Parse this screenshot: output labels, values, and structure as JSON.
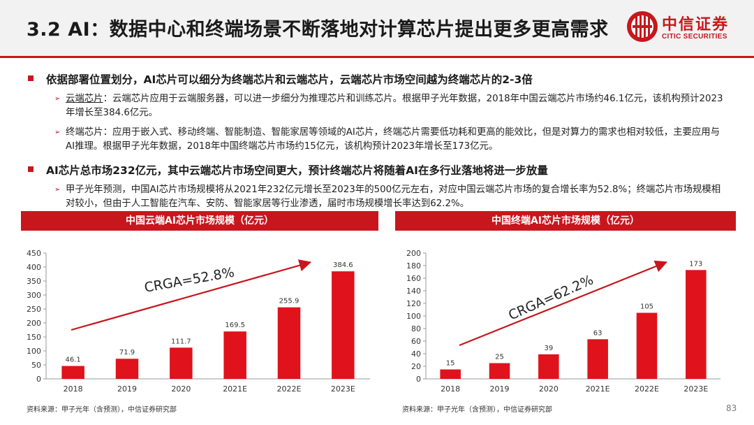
{
  "header": {
    "title": "3.2 AI：数据中心和终端场景不断落地对计算芯片提出更多更高需求",
    "logo_cn": "中信证券",
    "logo_en": "CITIC SECURITIES",
    "accent_color": "#c8161d"
  },
  "bullets": [
    {
      "text": "依据部署位置划分，AI芯片可以细分为终端芯片和云端芯片，云端芯片市场空间越为终端芯片的2-3倍",
      "subs": [
        {
          "term": "云端芯片",
          "text": "：云端芯片应用于云端服务器，可以进一步细分为推理芯片和训练芯片。根据甲子光年数据，2018年中国云端芯片市场约46.1亿元，该机构预计2023年增长至384.6亿元。"
        },
        {
          "term": "终端芯片",
          "text": "：应用于嵌入式、移动终端、智能制造、智能家居等领域的AI芯片，终端芯片需要低功耗和更高的能效比，但是对算力的需求也相对较低，主要应用与AI推理。根据甲子光年数据，2018年中国终端芯片市场约15亿元，该机构预计2023年增长至173亿元。"
        }
      ]
    },
    {
      "text": "AI芯片总市场232亿元，其中云端芯片市场空间更大，预计终端芯片将随着AI在多行业落地将进一步放量",
      "subs": [
        {
          "term": "",
          "text": "甲子光年预测，中国AI芯片市场规模将从2021年232亿元增长至2023年的500亿元左右，对应中国云端芯片市场的复合增长率为52.8%；终端芯片市场规模相对较小，但由于人工智能在汽车、安防、智能家居等行业渗透，届时市场规模增长率达到62.2%。"
        }
      ]
    }
  ],
  "chart_data": [
    {
      "type": "bar",
      "title": "中国云端AI芯片市场规模（亿元）",
      "categories": [
        "2018",
        "2019",
        "2020",
        "2021E",
        "2022E",
        "2023E"
      ],
      "values": [
        46.1,
        71.9,
        111.7,
        169.5,
        255.9,
        384.6
      ],
      "value_labels": [
        "46.1",
        "71.9",
        "111.7",
        "169.5",
        "255.9",
        "384.6"
      ],
      "yticks": [
        "0",
        "50",
        "100",
        "150",
        "200",
        "250",
        "300",
        "350",
        "400",
        "450"
      ],
      "ylim": [
        0,
        450
      ],
      "annotation": "CRGA=52.8%",
      "color": "#e0121c",
      "source": "资料来源：甲子光年（含预测），中信证券研究部"
    },
    {
      "type": "bar",
      "title": "中国终端AI芯片市场规模（亿元）",
      "categories": [
        "2018",
        "2019",
        "2020",
        "2021E",
        "2022E",
        "2023E"
      ],
      "values": [
        15,
        25,
        39,
        63,
        105,
        173
      ],
      "value_labels": [
        "15",
        "25",
        "39",
        "63",
        "105",
        "173"
      ],
      "yticks": [
        "0",
        "20",
        "40",
        "60",
        "80",
        "100",
        "120",
        "140",
        "160",
        "180",
        "200"
      ],
      "ylim": [
        0,
        200
      ],
      "annotation": "CRGA=62.2%",
      "color": "#e0121c",
      "source": "资料来源：甲子光年（含预测），中信证券研究部"
    }
  ],
  "page_number": "83"
}
